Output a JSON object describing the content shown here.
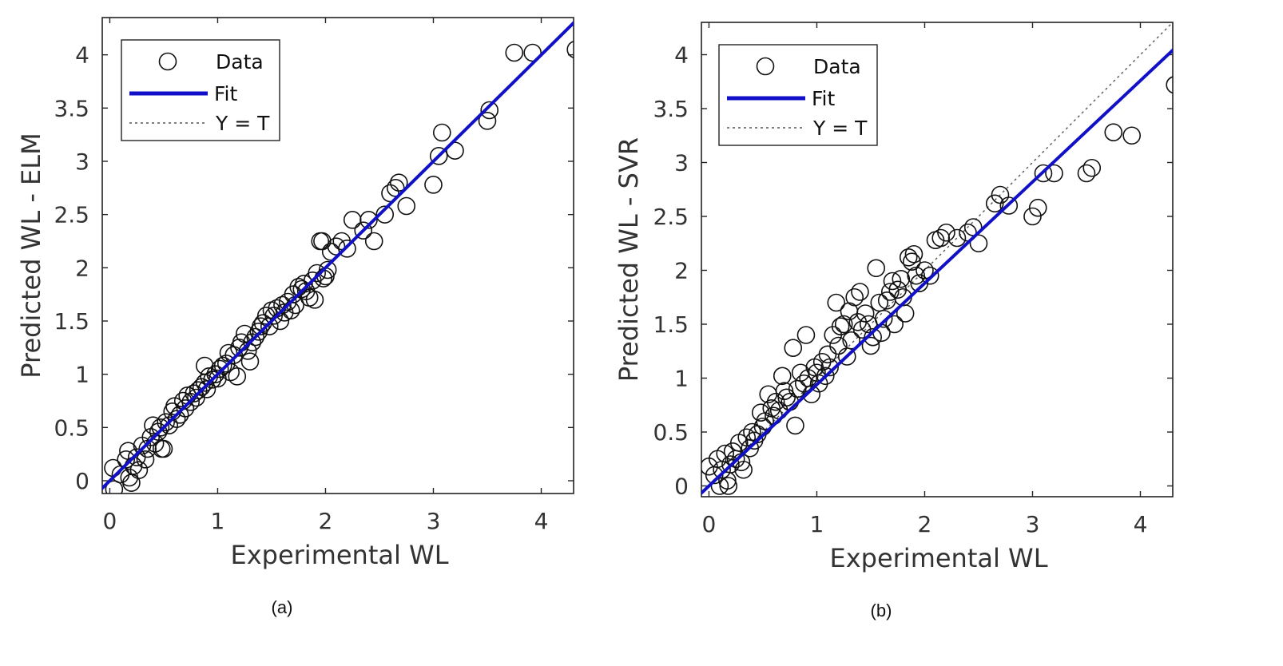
{
  "chart_data": [
    {
      "type": "scatter",
      "panel_label": "(a)",
      "xlabel": "Experimental WL",
      "ylabel": "Predicted WL - ELM",
      "xlim": [
        -0.07,
        4.3
      ],
      "ylim": [
        -0.12,
        4.35
      ],
      "xticks": [
        0,
        1,
        2,
        3,
        4
      ],
      "yticks": [
        0,
        0.5,
        1,
        1.5,
        2,
        2.5,
        3,
        3.5,
        4
      ],
      "grid": false,
      "legend": {
        "position": "top-left",
        "entries": [
          {
            "label": "Data",
            "kind": "marker"
          },
          {
            "label": "Fit",
            "kind": "line"
          },
          {
            "label": "Y = T",
            "kind": "dotted"
          }
        ]
      },
      "fit": {
        "slope": 1.0,
        "intercept": 0.0
      },
      "identity_line": true,
      "points": [
        [
          0.04,
          -0.08
        ],
        [
          0.03,
          0.12
        ],
        [
          0.1,
          0.06
        ],
        [
          0.15,
          0.2
        ],
        [
          0.18,
          0.03
        ],
        [
          0.2,
          -0.02
        ],
        [
          0.17,
          0.28
        ],
        [
          0.22,
          0.14
        ],
        [
          0.25,
          0.22
        ],
        [
          0.27,
          0.1
        ],
        [
          0.3,
          0.33
        ],
        [
          0.33,
          0.2
        ],
        [
          0.35,
          0.3
        ],
        [
          0.38,
          0.41
        ],
        [
          0.4,
          0.52
        ],
        [
          0.42,
          0.35
        ],
        [
          0.45,
          0.46
        ],
        [
          0.47,
          0.5
        ],
        [
          0.48,
          0.3
        ],
        [
          0.5,
          0.3
        ],
        [
          0.52,
          0.55
        ],
        [
          0.55,
          0.52
        ],
        [
          0.58,
          0.65
        ],
        [
          0.6,
          0.7
        ],
        [
          0.62,
          0.58
        ],
        [
          0.65,
          0.62
        ],
        [
          0.68,
          0.75
        ],
        [
          0.7,
          0.68
        ],
        [
          0.72,
          0.8
        ],
        [
          0.75,
          0.74
        ],
        [
          0.78,
          0.82
        ],
        [
          0.8,
          0.78
        ],
        [
          0.82,
          0.85
        ],
        [
          0.85,
          0.88
        ],
        [
          0.88,
          0.92
        ],
        [
          0.9,
          0.86
        ],
        [
          0.88,
          1.08
        ],
        [
          0.92,
          0.98
        ],
        [
          0.95,
          0.95
        ],
        [
          0.98,
          1.0
        ],
        [
          1.0,
          0.96
        ],
        [
          1.02,
          1.05
        ],
        [
          1.05,
          1.08
        ],
        [
          1.08,
          1.1
        ],
        [
          1.1,
          1.2
        ],
        [
          1.12,
          1.02
        ],
        [
          1.15,
          1.18
        ],
        [
          1.18,
          0.98
        ],
        [
          1.2,
          1.25
        ],
        [
          1.22,
          1.3
        ],
        [
          1.25,
          1.38
        ],
        [
          1.28,
          1.22
        ],
        [
          1.3,
          1.12
        ],
        [
          1.32,
          1.3
        ],
        [
          1.35,
          1.35
        ],
        [
          1.38,
          1.4
        ],
        [
          1.4,
          1.45
        ],
        [
          1.42,
          1.48
        ],
        [
          1.45,
          1.55
        ],
        [
          1.48,
          1.45
        ],
        [
          1.5,
          1.6
        ],
        [
          1.52,
          1.55
        ],
        [
          1.55,
          1.62
        ],
        [
          1.58,
          1.5
        ],
        [
          1.6,
          1.65
        ],
        [
          1.62,
          1.58
        ],
        [
          1.65,
          1.68
        ],
        [
          1.68,
          1.6
        ],
        [
          1.7,
          1.75
        ],
        [
          1.72,
          1.65
        ],
        [
          1.75,
          1.82
        ],
        [
          1.78,
          1.8
        ],
        [
          1.8,
          1.85
        ],
        [
          1.82,
          1.78
        ],
        [
          1.85,
          1.72
        ],
        [
          1.88,
          1.88
        ],
        [
          1.9,
          1.7
        ],
        [
          1.92,
          1.95
        ],
        [
          1.95,
          2.25
        ],
        [
          1.97,
          2.25
        ],
        [
          1.98,
          1.9
        ],
        [
          2.0,
          1.92
        ],
        [
          2.02,
          1.98
        ],
        [
          2.05,
          2.15
        ],
        [
          2.1,
          2.2
        ],
        [
          2.15,
          2.25
        ],
        [
          2.2,
          2.18
        ],
        [
          2.25,
          2.45
        ],
        [
          2.35,
          2.35
        ],
        [
          2.4,
          2.45
        ],
        [
          2.45,
          2.25
        ],
        [
          2.55,
          2.5
        ],
        [
          2.6,
          2.7
        ],
        [
          2.65,
          2.75
        ],
        [
          2.68,
          2.8
        ],
        [
          2.75,
          2.58
        ],
        [
          3.0,
          2.78
        ],
        [
          3.05,
          3.05
        ],
        [
          3.08,
          3.27
        ],
        [
          3.2,
          3.1
        ],
        [
          3.5,
          3.38
        ],
        [
          3.52,
          3.48
        ],
        [
          3.75,
          4.02
        ],
        [
          3.92,
          4.02
        ],
        [
          4.32,
          4.05
        ]
      ]
    },
    {
      "type": "scatter",
      "panel_label": "(b)",
      "xlabel": "Experimental WL",
      "ylabel": "Predicted WL - SVR",
      "xlim": [
        -0.07,
        4.3
      ],
      "ylim": [
        -0.1,
        4.3
      ],
      "xticks": [
        0,
        1,
        2,
        3,
        4
      ],
      "yticks": [
        0,
        0.5,
        1,
        1.5,
        2,
        2.5,
        3,
        3.5,
        4
      ],
      "grid": false,
      "legend": {
        "position": "top-left",
        "entries": [
          {
            "label": "Data",
            "kind": "marker"
          },
          {
            "label": "Fit",
            "kind": "line"
          },
          {
            "label": "Y = T",
            "kind": "dotted"
          }
        ]
      },
      "fit": {
        "slope": 0.94,
        "intercept": 0.0
      },
      "identity_line": true,
      "points": [
        [
          0.0,
          0.18
        ],
        [
          0.05,
          0.1
        ],
        [
          0.08,
          0.25
        ],
        [
          0.1,
          0.0
        ],
        [
          0.12,
          0.15
        ],
        [
          0.15,
          0.3
        ],
        [
          0.17,
          0.05
        ],
        [
          0.18,
          0.0
        ],
        [
          0.2,
          0.2
        ],
        [
          0.22,
          0.32
        ],
        [
          0.25,
          0.25
        ],
        [
          0.28,
          0.4
        ],
        [
          0.3,
          0.22
        ],
        [
          0.32,
          0.15
        ],
        [
          0.35,
          0.45
        ],
        [
          0.38,
          0.35
        ],
        [
          0.4,
          0.5
        ],
        [
          0.42,
          0.42
        ],
        [
          0.45,
          0.48
        ],
        [
          0.48,
          0.68
        ],
        [
          0.5,
          0.55
        ],
        [
          0.52,
          0.6
        ],
        [
          0.55,
          0.85
        ],
        [
          0.58,
          0.72
        ],
        [
          0.6,
          0.65
        ],
        [
          0.62,
          0.78
        ],
        [
          0.65,
          0.7
        ],
        [
          0.68,
          1.02
        ],
        [
          0.7,
          0.88
        ],
        [
          0.72,
          0.82
        ],
        [
          0.75,
          0.78
        ],
        [
          0.78,
          1.28
        ],
        [
          0.8,
          0.56
        ],
        [
          0.82,
          0.9
        ],
        [
          0.85,
          1.05
        ],
        [
          0.88,
          0.95
        ],
        [
          0.9,
          1.4
        ],
        [
          0.92,
          1.0
        ],
        [
          0.95,
          0.85
        ],
        [
          0.98,
          1.1
        ],
        [
          1.0,
          1.05
        ],
        [
          1.02,
          0.95
        ],
        [
          1.05,
          1.15
        ],
        [
          1.08,
          1.02
        ],
        [
          1.1,
          1.22
        ],
        [
          1.12,
          1.1
        ],
        [
          1.15,
          1.4
        ],
        [
          1.18,
          1.7
        ],
        [
          1.2,
          1.3
        ],
        [
          1.22,
          1.48
        ],
        [
          1.25,
          1.5
        ],
        [
          1.28,
          1.2
        ],
        [
          1.3,
          1.62
        ],
        [
          1.32,
          1.35
        ],
        [
          1.35,
          1.75
        ],
        [
          1.38,
          1.52
        ],
        [
          1.4,
          1.8
        ],
        [
          1.42,
          1.45
        ],
        [
          1.45,
          1.6
        ],
        [
          1.48,
          1.5
        ],
        [
          1.5,
          1.3
        ],
        [
          1.52,
          1.38
        ],
        [
          1.55,
          2.02
        ],
        [
          1.58,
          1.7
        ],
        [
          1.6,
          1.42
        ],
        [
          1.62,
          1.55
        ],
        [
          1.65,
          1.72
        ],
        [
          1.68,
          1.8
        ],
        [
          1.7,
          1.9
        ],
        [
          1.72,
          1.5
        ],
        [
          1.75,
          1.82
        ],
        [
          1.78,
          1.92
        ],
        [
          1.8,
          1.75
        ],
        [
          1.82,
          1.6
        ],
        [
          1.85,
          2.12
        ],
        [
          1.88,
          2.08
        ],
        [
          1.9,
          2.15
        ],
        [
          1.92,
          1.95
        ],
        [
          1.95,
          1.88
        ],
        [
          2.0,
          2.0
        ],
        [
          2.05,
          1.95
        ],
        [
          2.1,
          2.28
        ],
        [
          2.15,
          2.3
        ],
        [
          2.2,
          2.35
        ],
        [
          2.3,
          2.3
        ],
        [
          2.4,
          2.35
        ],
        [
          2.45,
          2.4
        ],
        [
          2.5,
          2.25
        ],
        [
          2.65,
          2.62
        ],
        [
          2.7,
          2.7
        ],
        [
          2.78,
          2.6
        ],
        [
          3.0,
          2.5
        ],
        [
          3.05,
          2.58
        ],
        [
          3.1,
          2.9
        ],
        [
          3.2,
          2.9
        ],
        [
          3.5,
          2.9
        ],
        [
          3.55,
          2.95
        ],
        [
          3.75,
          3.28
        ],
        [
          3.92,
          3.25
        ],
        [
          4.32,
          3.72
        ]
      ]
    }
  ]
}
